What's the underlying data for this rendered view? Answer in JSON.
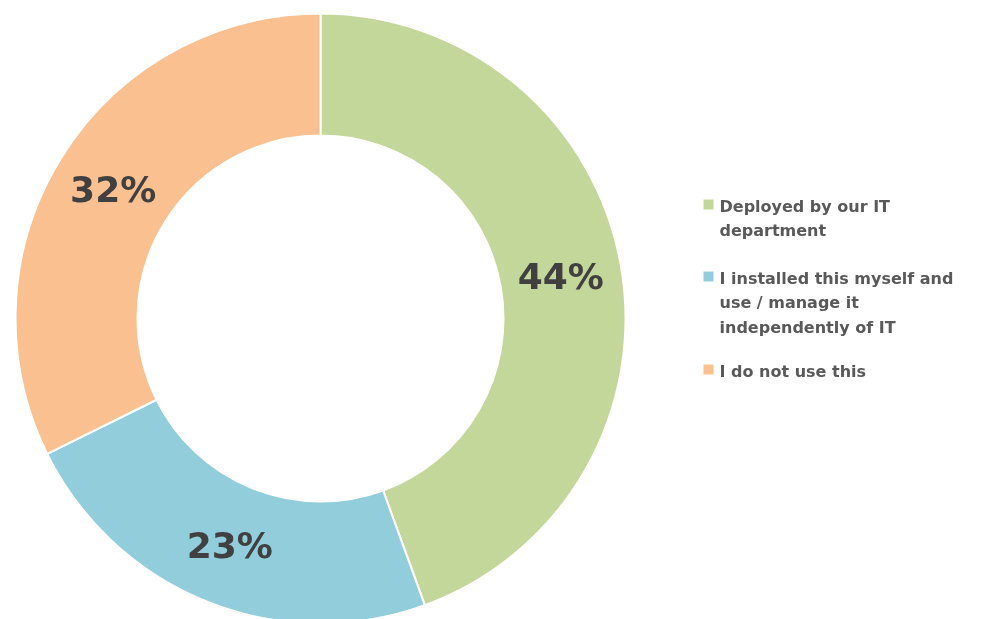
{
  "chart_data": {
    "type": "donut",
    "categories": [
      "Deployed by our IT department",
      "I installed this myself and use / manage it independently of IT",
      "I do not use this"
    ],
    "values": [
      44,
      23,
      32
    ],
    "value_labels": [
      "44%",
      "23%",
      "32%"
    ],
    "colors": [
      "#c4d79b",
      "#92cddc",
      "#fac090"
    ],
    "legend": "right"
  }
}
